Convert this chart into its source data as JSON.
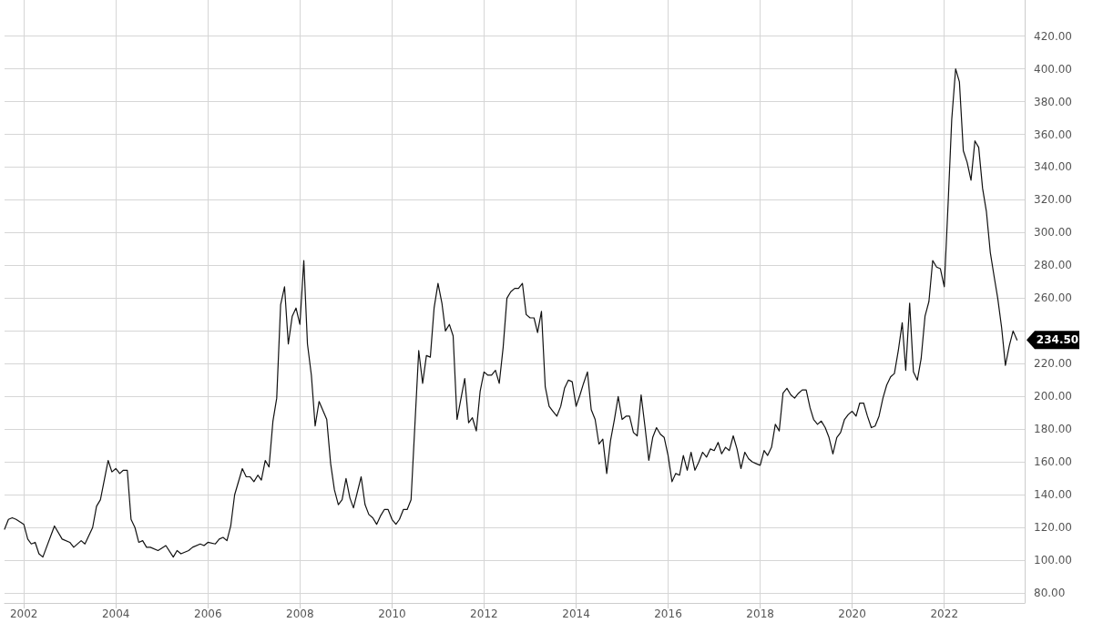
{
  "chart_data": {
    "type": "line",
    "x": [
      "2001-08",
      "2001-09",
      "2001-10",
      "2001-11",
      "2002-01",
      "2002-02",
      "2002-03",
      "2002-04",
      "2002-05",
      "2002-06",
      "2002-09",
      "2002-11",
      "2003-01",
      "2003-02",
      "2003-04",
      "2003-05",
      "2003-07",
      "2003-08",
      "2003-09",
      "2003-11",
      "2003-12",
      "2004-01",
      "2004-02",
      "2004-03",
      "2004-04",
      "2004-05",
      "2004-06",
      "2004-07",
      "2004-08",
      "2004-09",
      "2004-10",
      "2004-12",
      "2005-02",
      "2005-04",
      "2005-05",
      "2005-06",
      "2005-08",
      "2005-09",
      "2005-11",
      "2005-12",
      "2006-01",
      "2006-03",
      "2006-04",
      "2006-05",
      "2006-06",
      "2006-07",
      "2006-08",
      "2006-10",
      "2006-11",
      "2006-12",
      "2007-01",
      "2007-02",
      "2007-03",
      "2007-04",
      "2007-05",
      "2007-06",
      "2007-07",
      "2007-08",
      "2007-09",
      "2007-10",
      "2007-11",
      "2007-12",
      "2008-01",
      "2008-02",
      "2008-03",
      "2008-04",
      "2008-05",
      "2008-06",
      "2008-08",
      "2008-09",
      "2008-10",
      "2008-11",
      "2008-12",
      "2009-01",
      "2009-02",
      "2009-03",
      "2009-05",
      "2009-06",
      "2009-07",
      "2009-08",
      "2009-09",
      "2009-10",
      "2009-11",
      "2009-12",
      "2010-01",
      "2010-02",
      "2010-03",
      "2010-04",
      "2010-05",
      "2010-06",
      "2010-08",
      "2010-09",
      "2010-10",
      "2010-11",
      "2010-12",
      "2011-01",
      "2011-02",
      "2011-03",
      "2011-04",
      "2011-05",
      "2011-06",
      "2011-08",
      "2011-09",
      "2011-10",
      "2011-11",
      "2011-12",
      "2012-01",
      "2012-02",
      "2012-03",
      "2012-04",
      "2012-05",
      "2012-06",
      "2012-07",
      "2012-08",
      "2012-09",
      "2012-10",
      "2012-11",
      "2012-12",
      "2013-01",
      "2013-02",
      "2013-03",
      "2013-04",
      "2013-05",
      "2013-06",
      "2013-07",
      "2013-08",
      "2013-09",
      "2013-10",
      "2013-11",
      "2013-12",
      "2014-01",
      "2014-02",
      "2014-03",
      "2014-04",
      "2014-05",
      "2014-06",
      "2014-07",
      "2014-08",
      "2014-09",
      "2014-10",
      "2014-11",
      "2014-12",
      "2015-01",
      "2015-02",
      "2015-03",
      "2015-04",
      "2015-05",
      "2015-06",
      "2015-07",
      "2015-08",
      "2015-09",
      "2015-10",
      "2015-11",
      "2015-12",
      "2016-01",
      "2016-02",
      "2016-03",
      "2016-04",
      "2016-05",
      "2016-06",
      "2016-07",
      "2016-08",
      "2016-09",
      "2016-10",
      "2016-11",
      "2016-12",
      "2017-01",
      "2017-02",
      "2017-03",
      "2017-04",
      "2017-05",
      "2017-06",
      "2017-07",
      "2017-08",
      "2017-09",
      "2017-10",
      "2017-11",
      "2017-12",
      "2018-01",
      "2018-02",
      "2018-03",
      "2018-04",
      "2018-05",
      "2018-06",
      "2018-07",
      "2018-08",
      "2018-09",
      "2018-10",
      "2018-11",
      "2018-12",
      "2019-01",
      "2019-02",
      "2019-03",
      "2019-04",
      "2019-05",
      "2019-06",
      "2019-07",
      "2019-08",
      "2019-09",
      "2019-10",
      "2019-11",
      "2019-12",
      "2020-01",
      "2020-02",
      "2020-03",
      "2020-04",
      "2020-05",
      "2020-06",
      "2020-07",
      "2020-08",
      "2020-09",
      "2020-10",
      "2020-11",
      "2020-12",
      "2021-01",
      "2021-02",
      "2021-03",
      "2021-04",
      "2021-05",
      "2021-06",
      "2021-07",
      "2021-08",
      "2021-09",
      "2021-10",
      "2021-11",
      "2021-12",
      "2022-01",
      "2022-02",
      "2022-03",
      "2022-04",
      "2022-05",
      "2022-06",
      "2022-07",
      "2022-08",
      "2022-09",
      "2022-10",
      "2022-11",
      "2022-12",
      "2023-01",
      "2023-02",
      "2023-03",
      "2023-04",
      "2023-05",
      "2023-06",
      "2023-07",
      "2023-08"
    ],
    "series": [
      {
        "color": "#111111",
        "values": [
          119,
          125,
          126,
          125,
          122,
          113,
          110,
          111,
          104,
          102,
          121,
          113,
          111,
          108,
          112,
          110,
          120,
          133,
          137,
          161,
          154,
          156,
          153,
          155,
          155,
          125,
          120,
          111,
          112,
          108,
          108,
          106,
          109,
          102,
          106,
          104,
          106,
          108,
          110,
          109,
          111,
          110,
          113,
          114,
          112,
          121,
          140,
          156,
          151,
          151,
          148,
          152,
          149,
          161,
          157,
          185,
          199,
          256,
          267,
          232,
          249,
          254,
          244,
          283,
          232,
          213,
          182,
          197,
          186,
          159,
          143,
          134,
          137,
          150,
          138,
          132,
          151,
          134,
          128,
          126,
          122,
          127,
          131,
          131,
          125,
          122,
          125,
          131,
          131,
          137,
          228,
          208,
          225,
          224,
          254,
          269,
          257,
          240,
          244,
          237,
          186,
          211,
          184,
          187,
          179,
          203,
          215,
          213,
          213,
          216,
          208,
          230,
          260,
          264,
          266,
          266,
          269,
          250,
          248,
          248,
          239,
          252,
          206,
          194,
          191,
          188,
          194,
          205,
          210,
          209,
          194,
          201,
          208,
          215,
          192,
          186,
          171,
          174,
          153,
          173,
          186,
          200,
          186,
          188,
          188,
          178,
          176,
          201,
          182,
          161,
          175,
          181,
          177,
          175,
          164,
          148,
          153,
          152,
          164,
          155,
          166,
          155,
          160,
          166,
          163,
          168,
          167,
          172,
          165,
          169,
          167,
          176,
          168,
          156,
          166,
          162,
          160,
          159,
          158,
          167,
          164,
          169,
          183,
          179,
          202,
          205,
          201,
          199,
          202,
          204,
          204,
          193,
          186,
          183,
          185,
          181,
          175,
          165,
          175,
          178,
          186,
          189,
          191,
          188,
          196,
          196,
          188,
          181,
          182,
          188,
          199,
          207,
          212,
          214,
          228,
          245,
          216,
          257,
          215,
          210,
          223,
          249,
          258,
          283,
          279,
          278,
          267,
          319,
          369,
          400,
          392,
          350,
          343,
          332,
          356,
          352,
          327,
          313,
          288,
          273,
          260,
          242,
          219,
          231,
          240,
          234.5
        ]
      }
    ],
    "xlim": [
      "2001-08",
      "2023-10"
    ],
    "xticks": [
      "2002",
      "2004",
      "2006",
      "2008",
      "2010",
      "2012",
      "2014",
      "2016",
      "2018",
      "2020",
      "2022"
    ],
    "ylim": [
      74,
      442
    ],
    "yticks": [
      {
        "value": 80,
        "label": "80.00"
      },
      {
        "value": 100,
        "label": "100.00"
      },
      {
        "value": 120,
        "label": "120.00"
      },
      {
        "value": 140,
        "label": "140.00"
      },
      {
        "value": 160,
        "label": "160.00"
      },
      {
        "value": 180,
        "label": "180.00"
      },
      {
        "value": 200,
        "label": "200.00"
      },
      {
        "value": 220,
        "label": "220.00"
      },
      {
        "value": 240,
        "label": null
      },
      {
        "value": 260,
        "label": "260.00"
      },
      {
        "value": 280,
        "label": "280.00"
      },
      {
        "value": 300,
        "label": "300.00"
      },
      {
        "value": 320,
        "label": "320.00"
      },
      {
        "value": 340,
        "label": "340.00"
      },
      {
        "value": 360,
        "label": "360.00"
      },
      {
        "value": 380,
        "label": "380.00"
      },
      {
        "value": 400,
        "label": "400.00"
      },
      {
        "value": 420,
        "label": "420.00"
      }
    ],
    "annotations": [
      {
        "text": "234.50",
        "x": "2023-08",
        "y": 234.5
      }
    ],
    "grid": true,
    "marker": "none",
    "line_style": "solid"
  }
}
